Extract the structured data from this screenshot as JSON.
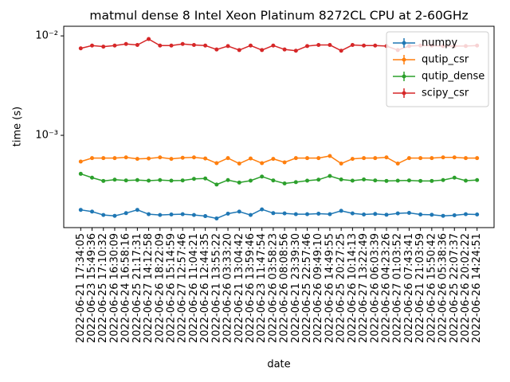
{
  "chart_data": {
    "type": "line",
    "title": "matmul dense 8 Intel Xeon Platinum 8272CL CPU at 2-60GHz",
    "x_label": "date",
    "y_label": "time (s)",
    "categories": [
      "2022-06-21 17:34:05",
      "2022-06-23 15:49:36",
      "2022-06-25 17:10:32",
      "2022-06-26 16:30:09",
      "2022-06-24 16:58:16",
      "2022-06-25 21:17:31",
      "2022-06-27 14:12:58",
      "2022-06-26 18:22:09",
      "2022-06-26 15:14:59",
      "2022-06-27 12:57:46",
      "2022-06-26 11:04:21",
      "2022-06-26 12:44:35",
      "2022-06-21 13:55:22",
      "2022-06-26 03:33:20",
      "2022-06-21 13:04:42",
      "2022-06-26 13:59:46",
      "2022-06-23 11:47:54",
      "2022-06-26 03:58:23",
      "2022-06-26 08:08:56",
      "2022-06-21 23:39:30",
      "2022-06-25 22:57:46",
      "2022-06-26 09:49:10",
      "2022-06-26 14:49:55",
      "2022-06-25 20:27:25",
      "2022-06-26 10:14:13",
      "2022-06-27 13:22:49",
      "2022-06-26 06:03:39",
      "2022-06-26 04:23:26",
      "2022-06-27 01:03:52",
      "2022-06-26 07:43:41",
      "2022-06-21 21:03:59",
      "2022-06-26 15:50:42",
      "2022-06-26 05:38:36",
      "2022-06-25 22:07:37",
      "2022-06-26 20:02:22",
      "2022-06-26 14:24:51"
    ],
    "series": [
      {
        "name": "numpy",
        "color": "#1f77b4",
        "values": [
          0.000178,
          0.000171,
          0.000158,
          0.000155,
          0.000165,
          0.000178,
          0.000161,
          0.000158,
          0.00016,
          0.000161,
          0.000158,
          0.000154,
          0.000146,
          0.000163,
          0.000171,
          0.000158,
          0.00018,
          0.000165,
          0.000164,
          0.000161,
          0.000161,
          0.000163,
          0.000161,
          0.000174,
          0.000164,
          0.00016,
          0.000162,
          0.000159,
          0.000164,
          0.000166,
          0.00016,
          0.000159,
          0.000155,
          0.000157,
          0.000161,
          0.00016
        ]
      },
      {
        "name": "qutip_csr",
        "color": "#ff7f0e",
        "values": [
          0.000545,
          0.00059,
          0.00059,
          0.00059,
          0.0006,
          0.00058,
          0.000585,
          0.0006,
          0.00058,
          0.000595,
          0.0006,
          0.000585,
          0.000525,
          0.00059,
          0.00052,
          0.000585,
          0.000525,
          0.00058,
          0.000535,
          0.00059,
          0.00059,
          0.00059,
          0.00062,
          0.00052,
          0.00058,
          0.00059,
          0.00059,
          0.0006,
          0.00052,
          0.00059,
          0.00059,
          0.00059,
          0.0006,
          0.0006,
          0.00059,
          0.00059
        ]
      },
      {
        "name": "qutip_dense",
        "color": "#2ca02c",
        "values": [
          0.00041,
          0.000375,
          0.000348,
          0.000358,
          0.000352,
          0.000355,
          0.00035,
          0.000355,
          0.00035,
          0.000352,
          0.000365,
          0.000368,
          0.00032,
          0.000355,
          0.000335,
          0.00035,
          0.000385,
          0.000352,
          0.000328,
          0.000338,
          0.00035,
          0.000358,
          0.00039,
          0.00036,
          0.00035,
          0.00036,
          0.000352,
          0.000348,
          0.00035,
          0.000352,
          0.000348,
          0.000348,
          0.000355,
          0.000375,
          0.00035,
          0.000355
        ]
      },
      {
        "name": "scipy_csr",
        "color": "#d62728",
        "values": [
          0.0075,
          0.008,
          0.0078,
          0.008,
          0.0083,
          0.0081,
          0.0093,
          0.008,
          0.008,
          0.0083,
          0.0081,
          0.008,
          0.0073,
          0.0079,
          0.0072,
          0.008,
          0.0072,
          0.008,
          0.0073,
          0.0071,
          0.0079,
          0.0081,
          0.0081,
          0.0071,
          0.0081,
          0.008,
          0.008,
          0.0079,
          0.0072,
          0.0079,
          0.008,
          0.008,
          0.0079,
          0.0079,
          0.0079,
          0.008
        ]
      }
    ],
    "ylim": [
      0.000118,
      0.0125
    ],
    "log_y": true,
    "yticks": [
      {
        "value": 0.001,
        "label": "10⁻³"
      },
      {
        "value": 0.01,
        "label": "10⁻²"
      }
    ],
    "legend": "upper right"
  }
}
